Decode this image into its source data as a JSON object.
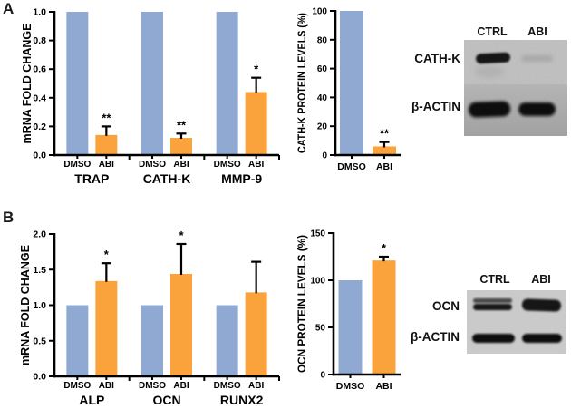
{
  "figure": {
    "panel_a_letter": "A",
    "panel_b_letter": "B"
  },
  "colors": {
    "dmso_bar": "#8FA9D3",
    "abi_bar": "#FAA33C",
    "axis": "#000000",
    "error_bar": "#000000",
    "background": "#FFFFFF"
  },
  "chart_data": [
    {
      "id": "a_mrna",
      "type": "bar",
      "panel": "A",
      "title": "",
      "xlabel": "",
      "ylabel": "mRNA FOLD CHANGE",
      "ylim": [
        0,
        1.0
      ],
      "ytick_values": [
        0,
        0.2,
        0.4,
        0.6,
        0.8,
        1.0
      ],
      "ytick_labels": [
        "0.0",
        "0.2",
        "0.4",
        "0.6",
        "0.8",
        "1.0"
      ],
      "grid": false,
      "legend": "none",
      "categories": [
        "TRAP",
        "CATH-K",
        "MMP-9"
      ],
      "series": [
        {
          "name": "DMSO",
          "color_key": "dmso_bar",
          "values": [
            1.0,
            1.0,
            1.0
          ],
          "errors": [
            null,
            null,
            null
          ],
          "sig": [
            null,
            null,
            null
          ]
        },
        {
          "name": "ABI",
          "color_key": "abi_bar",
          "values": [
            0.14,
            0.12,
            0.44
          ],
          "errors": [
            0.06,
            0.03,
            0.1
          ],
          "sig": [
            "**",
            "**",
            "*"
          ]
        }
      ]
    },
    {
      "id": "a_protein",
      "type": "bar",
      "panel": "A",
      "title": "",
      "xlabel": "",
      "ylabel": "CATH-K PROTEIN LEVELS (%)",
      "ylim": [
        0,
        100
      ],
      "ytick_values": [
        0,
        20,
        40,
        60,
        80,
        100
      ],
      "ytick_labels": [
        "0",
        "20",
        "40",
        "60",
        "80",
        "100"
      ],
      "grid": false,
      "legend": "none",
      "categories": [
        "DMSO",
        "ABI"
      ],
      "series": [
        {
          "name": "protein_level",
          "colors_by_bar": [
            "dmso_bar",
            "abi_bar"
          ],
          "values": [
            100,
            6
          ],
          "errors": [
            null,
            3
          ],
          "sig": [
            null,
            "**"
          ]
        }
      ]
    },
    {
      "id": "b_mrna",
      "type": "bar",
      "panel": "B",
      "title": "",
      "xlabel": "",
      "ylabel": "mRNA FOLD CHANGE",
      "ylim": [
        0,
        2.0
      ],
      "ytick_values": [
        0,
        0.5,
        1.0,
        1.5,
        2.0
      ],
      "ytick_labels": [
        "0.0",
        "0.5",
        "1.0",
        "1.5",
        "2.0"
      ],
      "grid": false,
      "legend": "none",
      "categories": [
        "ALP",
        "OCN",
        "RUNX2"
      ],
      "series": [
        {
          "name": "DMSO",
          "color_key": "dmso_bar",
          "values": [
            1.0,
            1.0,
            1.0
          ],
          "errors": [
            null,
            null,
            null
          ],
          "sig": [
            null,
            null,
            null
          ]
        },
        {
          "name": "ABI",
          "color_key": "abi_bar",
          "values": [
            1.34,
            1.44,
            1.18
          ],
          "errors": [
            0.25,
            0.42,
            0.43
          ],
          "sig": [
            "*",
            "*",
            null
          ]
        }
      ]
    },
    {
      "id": "b_protein",
      "type": "bar",
      "panel": "B",
      "title": "",
      "xlabel": "",
      "ylabel": "OCN PROTEIN LEVELS (%)",
      "ylim": [
        0,
        150
      ],
      "ytick_values": [
        0,
        50,
        100,
        150
      ],
      "ytick_labels": [
        "0",
        "50",
        "100",
        "150"
      ],
      "grid": false,
      "legend": "none",
      "categories": [
        "DMSO",
        "ABI"
      ],
      "series": [
        {
          "name": "protein_level",
          "colors_by_bar": [
            "dmso_bar",
            "abi_bar"
          ],
          "values": [
            100,
            121
          ],
          "errors": [
            null,
            4
          ],
          "sig": [
            null,
            "*"
          ]
        }
      ]
    }
  ],
  "blots": [
    {
      "panel": "A",
      "col_labels": [
        "CTRL",
        "ABI"
      ],
      "rows": [
        {
          "label": "CATH-K",
          "lanes": [
            {
              "col": "CTRL",
              "band": "strong"
            },
            {
              "col": "ABI",
              "band": "faint"
            }
          ]
        },
        {
          "label": "β-ACTIN",
          "lanes": [
            {
              "col": "CTRL",
              "band": "strong"
            },
            {
              "col": "ABI",
              "band": "strong"
            }
          ]
        }
      ]
    },
    {
      "panel": "B",
      "col_labels": [
        "CTRL",
        "ABI"
      ],
      "rows": [
        {
          "label": "OCN",
          "lanes": [
            {
              "col": "CTRL",
              "band": "double"
            },
            {
              "col": "ABI",
              "band": "strong"
            }
          ]
        },
        {
          "label": "β-ACTIN",
          "lanes": [
            {
              "col": "CTRL",
              "band": "strong"
            },
            {
              "col": "ABI",
              "band": "strong"
            }
          ]
        }
      ]
    }
  ]
}
